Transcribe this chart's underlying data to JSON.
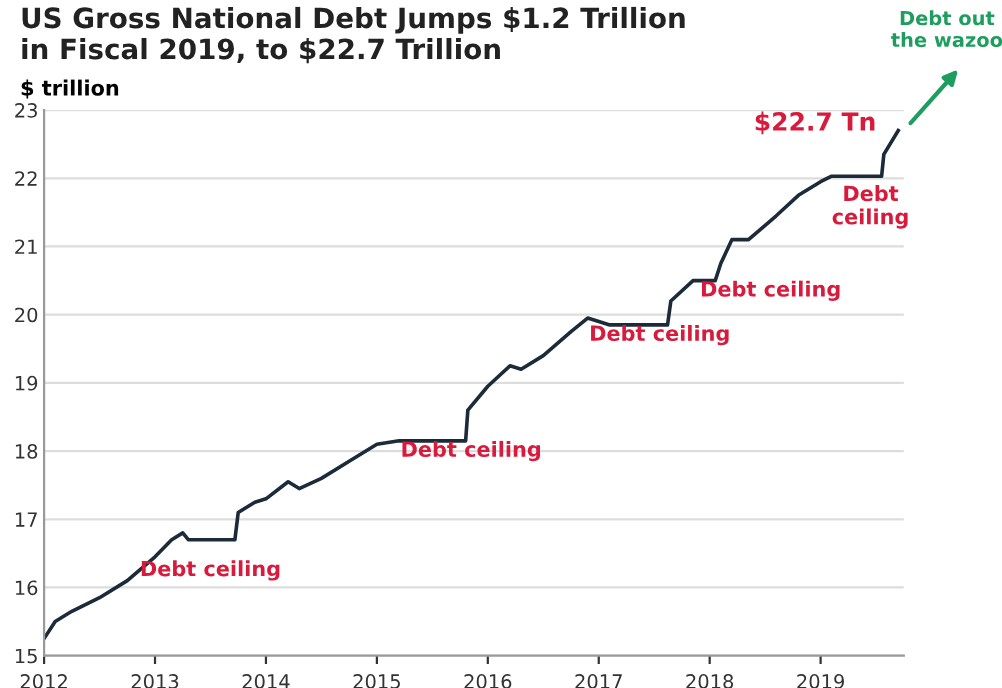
{
  "chart_data": {
    "type": "line",
    "title": "US Gross National Debt Jumps $1.2 Trillion\nin Fiscal 2019, to $22.7 Trillion",
    "ylabel": "$ trillion",
    "x": [
      2012.0,
      2012.1,
      2012.25,
      2012.5,
      2012.75,
      2013.0,
      2013.15,
      2013.25,
      2013.3,
      2013.72,
      2013.75,
      2013.9,
      2014.0,
      2014.2,
      2014.3,
      2014.5,
      2014.75,
      2015.0,
      2015.2,
      2015.8,
      2015.82,
      2016.0,
      2016.2,
      2016.3,
      2016.5,
      2016.75,
      2016.9,
      2017.1,
      2017.62,
      2017.65,
      2017.85,
      2018.05,
      2018.1,
      2018.2,
      2018.35,
      2018.6,
      2018.8,
      2019.0,
      2019.1,
      2019.55,
      2019.57,
      2019.7
    ],
    "series": [
      {
        "color": "#1c2b3a",
        "values": [
          15.25,
          15.5,
          15.65,
          15.85,
          16.1,
          16.45,
          16.7,
          16.8,
          16.7,
          16.7,
          17.1,
          17.25,
          17.3,
          17.55,
          17.45,
          17.6,
          17.85,
          18.1,
          18.15,
          18.15,
          18.6,
          18.95,
          19.25,
          19.2,
          19.4,
          19.75,
          19.95,
          19.85,
          19.85,
          20.2,
          20.5,
          20.5,
          20.75,
          21.1,
          21.1,
          21.45,
          21.75,
          21.95,
          22.03,
          22.03,
          22.35,
          22.7
        ]
      }
    ],
    "xlim": [
      2012,
      2019.75
    ],
    "xticks": [
      2012,
      2013,
      2014,
      2015,
      2016,
      2017,
      2018,
      2019
    ],
    "ylim": [
      15,
      23
    ],
    "yticks": [
      15,
      16,
      17,
      18,
      19,
      20,
      21,
      22,
      23
    ],
    "grid": "y",
    "marker": "none",
    "line_style": "solid",
    "annotations": [
      {
        "text": "Debt ceiling",
        "x": 2013.5,
        "y": 16.7
      },
      {
        "text": "Debt ceiling",
        "x": 2015.5,
        "y": 18.15
      },
      {
        "text": "Debt ceiling",
        "x": 2017.35,
        "y": 19.85
      },
      {
        "text": "Debt ceiling",
        "x": 2017.95,
        "y": 20.5
      },
      {
        "text": "Debt\nceiling",
        "x": 2019.35,
        "y": 22.03
      },
      {
        "text": "$22.7 Tn",
        "x": 2019.7,
        "y": 22.7
      },
      "Debt out\nthe wazoo"
    ]
  }
}
